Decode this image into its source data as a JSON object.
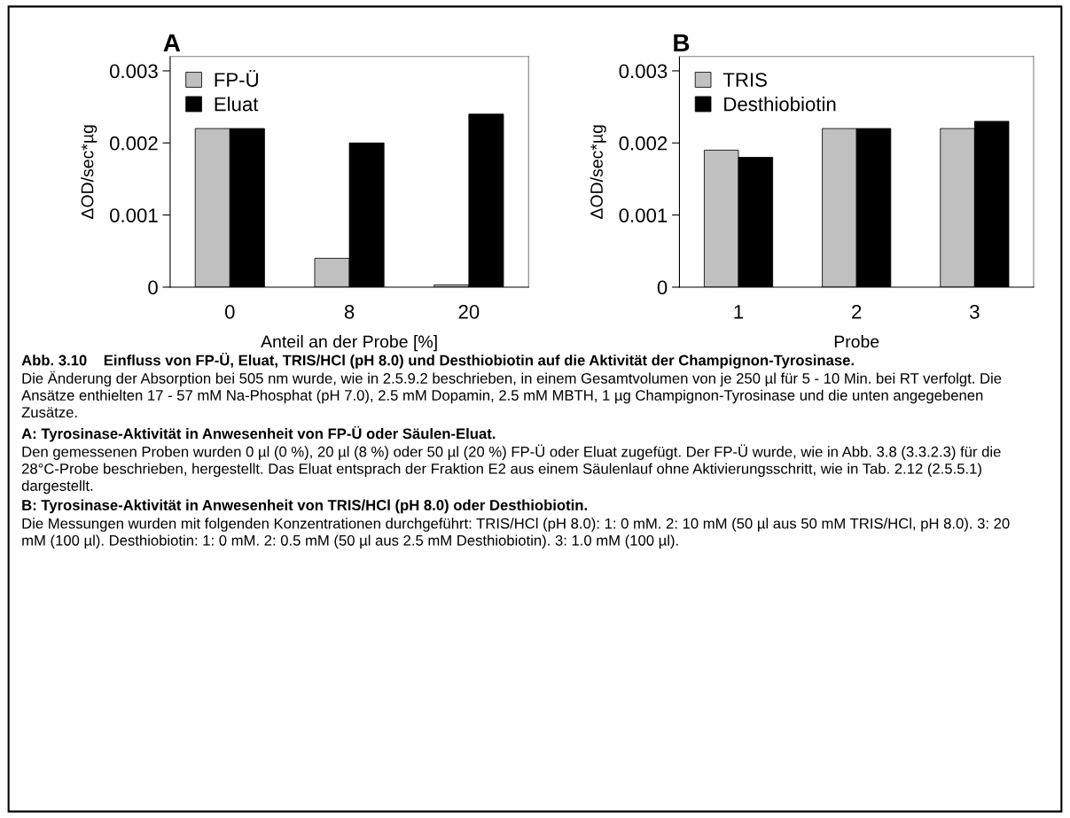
{
  "chart_data": [
    {
      "type": "bar",
      "title": "A",
      "categories": [
        "0",
        "8",
        "20"
      ],
      "xlabel": "Anteil an der Probe [%]",
      "ylabel": "ΔOD/sec*µg",
      "series": [
        {
          "name": "FP-Ü",
          "color": "#c0c0c0",
          "values": [
            0.0022,
            0.0004,
            3e-05
          ]
        },
        {
          "name": "Eluat",
          "color": "#000000",
          "values": [
            0.0022,
            0.002,
            0.0024
          ]
        }
      ],
      "ylim": [
        0,
        0.0032
      ],
      "yticks": [
        0,
        0.001,
        0.002,
        0.003
      ],
      "legend": "top left",
      "grid": false
    },
    {
      "type": "bar",
      "title": "B",
      "categories": [
        "1",
        "2",
        "3"
      ],
      "xlabel": "Probe",
      "ylabel": "ΔOD/sec*µg",
      "series": [
        {
          "name": "TRIS",
          "color": "#c0c0c0",
          "values": [
            0.0019,
            0.0022,
            0.0022
          ]
        },
        {
          "name": "Desthiobiotin",
          "color": "#000000",
          "values": [
            0.0018,
            0.0022,
            0.0023
          ]
        }
      ],
      "ylim": [
        0,
        0.0032
      ],
      "yticks": [
        0,
        0.001,
        0.002,
        0.003
      ],
      "legend": "top left",
      "grid": false,
      "annotations": [
        "Abb. 3.10    Einfluss von FP-Ü, Eluat, TRIS/HCl (pH 8.0) und Desthiobiotin auf die Aktivität der Champignon-Tyrosinase.",
        "Die Änderung der Absorption bei 505 nm wurde, wie in 2.5.9.2 beschrieben, in einem Gesamtvolumen von je 250 µl für 5 - 10 Min. bei RT verfolgt. Die Ansätze enthielten 17 - 57 mM Na-Phosphat (pH 7.0), 2.5 mM Dopamin, 2.5 mM MBTH, 1 µg Champignon-Tyrosinase und die unten angegebenen Zusätze.",
        "A: Tyrosinase-Aktivität in Anwesenheit von FP-Ü oder Säulen-Eluat.",
        "Den gemessenen Proben wurden 0 µl (0 %), 20 µl (8 %) oder 50 µl (20 %) FP-Ü oder Eluat zugefügt. Der FP-Ü wurde, wie in Abb. 3.8 (3.3.2.3) für die 28°C-Probe beschrieben, hergestellt. Das Eluat entsprach der Fraktion E2 aus einem Säulenlauf ohne Aktivierungsschritt, wie in Tab. 2.12 (2.5.5.1) dargestellt.",
        "B: Tyrosinase-Aktivität in Anwesenheit von TRIS/HCl (pH 8.0) oder Desthiobiotin.",
        "Die Messungen wurden mit folgenden Konzentrationen durchgeführt: TRIS/HCl (pH 8.0): 1: 0 mM. 2: 10 mM (50 µl aus 50 mM TRIS/HCl, pH 8.0). 3: 20 mM (100 µl). Desthiobiotin: 1: 0 mM. 2: 0.5 mM (50 µl aus 2.5 mM Desthiobiotin). 3: 1.0 mM (100 µl)."
      ]
    }
  ]
}
